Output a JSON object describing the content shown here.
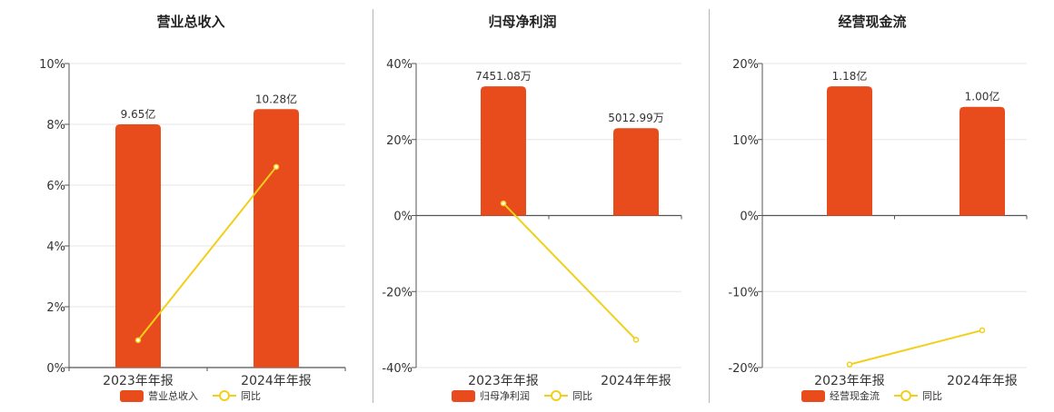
{
  "chart_data": [
    {
      "type": "bar",
      "title": "营业总收入",
      "categories": [
        "2023年年报",
        "2024年年报"
      ],
      "bar_labels": [
        "9.65亿",
        "10.28亿"
      ],
      "series": [
        {
          "name": "营业总收入",
          "type": "bar",
          "values": [
            8.0,
            8.5
          ],
          "color": "#e84c1c"
        },
        {
          "name": "同比",
          "type": "line",
          "values": [
            0.9,
            6.6
          ],
          "color": "#f2cf1a"
        }
      ],
      "ylim": [
        0,
        10
      ],
      "yticks": [
        "0%",
        "2%",
        "4%",
        "6%",
        "8%",
        "10%"
      ],
      "ytick_values": [
        0,
        2,
        4,
        6,
        8,
        10
      ],
      "grid": true,
      "legend": "bottom"
    },
    {
      "type": "bar",
      "title": "归母净利润",
      "categories": [
        "2023年年报",
        "2024年年报"
      ],
      "bar_labels": [
        "7451.08万",
        "5012.99万"
      ],
      "series": [
        {
          "name": "归母净利润",
          "type": "bar",
          "values": [
            34,
            23
          ],
          "color": "#e84c1c"
        },
        {
          "name": "同比",
          "type": "line",
          "values": [
            3.2,
            -32.7
          ],
          "color": "#f2cf1a"
        }
      ],
      "ylim": [
        -40,
        40
      ],
      "yticks": [
        "-40%",
        "-20%",
        "0%",
        "20%",
        "40%"
      ],
      "ytick_values": [
        -40,
        -20,
        0,
        20,
        40
      ],
      "grid": true,
      "legend": "bottom"
    },
    {
      "type": "bar",
      "title": "经营现金流",
      "categories": [
        "2023年年报",
        "2024年年报"
      ],
      "bar_labels": [
        "1.18亿",
        "1.00亿"
      ],
      "series": [
        {
          "name": "经营现金流",
          "type": "bar",
          "values": [
            17,
            14.3
          ],
          "color": "#e84c1c"
        },
        {
          "name": "同比",
          "type": "line",
          "values": [
            -19.6,
            -15.1
          ],
          "color": "#f2cf1a"
        }
      ],
      "ylim": [
        -20,
        20
      ],
      "yticks": [
        "-20%",
        "-10%",
        "0%",
        "10%",
        "20%"
      ],
      "ytick_values": [
        -20,
        -10,
        0,
        10,
        20
      ],
      "grid": true,
      "legend": "bottom"
    }
  ]
}
